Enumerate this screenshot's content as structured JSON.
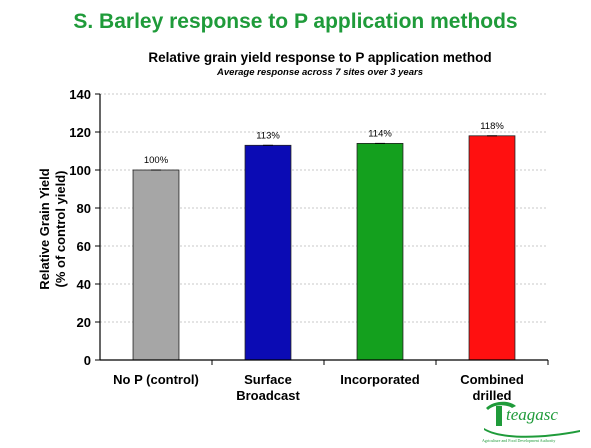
{
  "slide": {
    "title": "S. Barley response to P application methods"
  },
  "chart_data": {
    "type": "bar",
    "title": "Relative grain yield response to P application method",
    "subtitle": "Average response across 7 sites over 3 years",
    "xlabel": "",
    "ylabel": "Relative Grain Yield",
    "ylabel_line2": "(% of control yield)",
    "ylim": [
      0,
      140
    ],
    "yticks": [
      0,
      20,
      40,
      60,
      80,
      100,
      120,
      140
    ],
    "grid": true,
    "categories": [
      "No P (control)",
      "Surface Broadcast",
      "Incorporated",
      "Combined drilled"
    ],
    "category_lines": [
      [
        "No P (control)"
      ],
      [
        "Surface",
        "Broadcast"
      ],
      [
        "Incorporated"
      ],
      [
        "Combined",
        "drilled"
      ]
    ],
    "values": [
      100,
      113,
      114,
      118
    ],
    "data_labels": [
      "100%",
      "113%",
      "114%",
      "118%"
    ],
    "colors": [
      "#a6a6a6",
      "#0b0bb4",
      "#14a01e",
      "#ff1010"
    ]
  },
  "logo": {
    "text": "teagasc",
    "tagline": "Agriculture and Food Development Authority",
    "color": "#1f9b3a"
  }
}
